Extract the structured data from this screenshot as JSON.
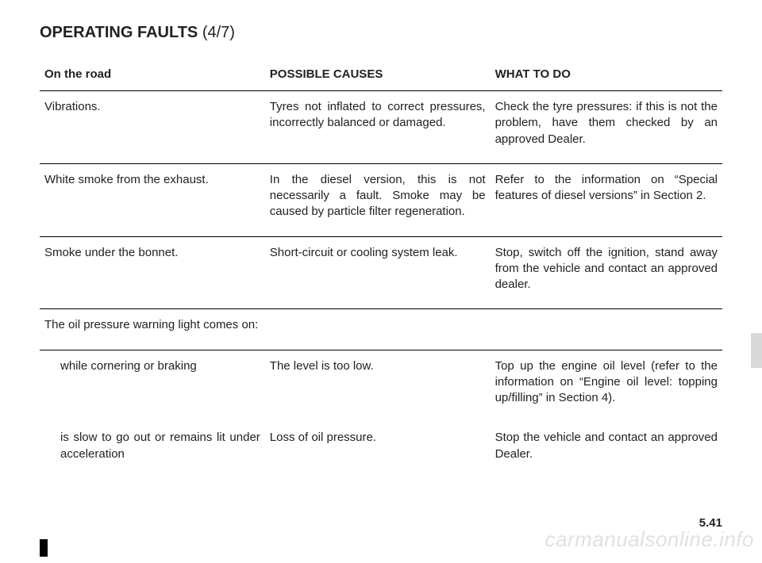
{
  "title": "OPERATING FAULTS",
  "title_sub": "(4/7)",
  "headers": {
    "c1": "On the road",
    "c2": "POSSIBLE CAUSES",
    "c3": "WHAT TO DO"
  },
  "rows": [
    {
      "c1": "Vibrations.",
      "c2": "Tyres not inflated to correct pressures, incorrectly balanced or damaged.",
      "c3": "Check the tyre pressures: if this is not the problem, have them checked by an approved Dealer."
    },
    {
      "c1": "White smoke from the exhaust.",
      "c2": "In the diesel version, this is not necessarily a fault. Smoke may be caused by particle filter regeneration.",
      "c3": "Refer to the information on “Special features of diesel versions” in Section 2."
    },
    {
      "c1": "Smoke under the bonnet.",
      "c2": "Short-circuit or cooling system leak.",
      "c3": "Stop, switch off the ignition, stand away from the vehicle and contact an approved dealer."
    }
  ],
  "oil_header": "The oil pressure warning light comes on:",
  "oil_rows": [
    {
      "c1": "while cornering or braking",
      "c2": "The level is too low.",
      "c3": "Top up the engine oil level (refer to the information on “Engine oil level: topping up/filling” in Section 4)."
    },
    {
      "c1": "is slow to go out or remains lit under acceleration",
      "c2": "Loss of oil pressure.",
      "c3": "Stop the vehicle and contact an approved Dealer."
    }
  ],
  "page_number": "5.41",
  "watermark": "carmanualsonline.info"
}
